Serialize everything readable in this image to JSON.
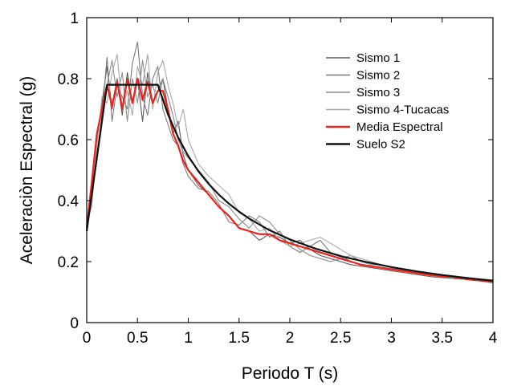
{
  "chart_data": {
    "type": "line",
    "title": "",
    "xlabel": "Periodo T (s)",
    "ylabel": "Aceleraciòn Espectral (g)",
    "xlim": [
      0,
      4
    ],
    "ylim": [
      0,
      1
    ],
    "xticks": [
      0,
      0.5,
      1,
      1.5,
      2,
      2.5,
      3,
      3.5,
      4
    ],
    "xtick_labels": [
      "0",
      "0.5",
      "1",
      "1.5",
      "2",
      "2.5",
      "3",
      "3.5",
      "4"
    ],
    "yticks": [
      0,
      0.2,
      0.4,
      0.6,
      0.8,
      1
    ],
    "ytick_labels": [
      "0",
      "0.2",
      "0.4",
      "0.6",
      "0.8",
      "1"
    ],
    "grid": false,
    "legend_position": "top-right",
    "series": [
      {
        "name": "Sismo 1",
        "color": "#5a5a5a",
        "x": [
          0,
          0.05,
          0.1,
          0.15,
          0.2,
          0.25,
          0.3,
          0.35,
          0.4,
          0.45,
          0.5,
          0.55,
          0.6,
          0.65,
          0.7,
          0.75,
          0.8,
          0.85,
          0.9,
          0.95,
          1.0,
          1.1,
          1.2,
          1.3,
          1.4,
          1.5,
          1.6,
          1.7,
          1.8,
          1.9,
          2.0,
          2.1,
          2.2,
          2.3,
          2.4,
          2.5,
          2.6,
          2.7,
          2.8,
          2.9,
          3.0,
          3.2,
          3.4,
          3.6,
          3.8,
          4.0
        ],
        "y": [
          0.31,
          0.45,
          0.6,
          0.72,
          0.84,
          0.7,
          0.8,
          0.68,
          0.82,
          0.72,
          0.8,
          0.66,
          0.82,
          0.72,
          0.76,
          0.8,
          0.7,
          0.62,
          0.66,
          0.55,
          0.5,
          0.45,
          0.42,
          0.38,
          0.35,
          0.31,
          0.3,
          0.27,
          0.29,
          0.28,
          0.26,
          0.27,
          0.24,
          0.22,
          0.21,
          0.2,
          0.19,
          0.185,
          0.18,
          0.175,
          0.17,
          0.16,
          0.15,
          0.145,
          0.14,
          0.135
        ]
      },
      {
        "name": "Sismo 2",
        "color": "#7a7a7a",
        "x": [
          0,
          0.05,
          0.1,
          0.15,
          0.2,
          0.25,
          0.3,
          0.35,
          0.4,
          0.45,
          0.5,
          0.55,
          0.6,
          0.65,
          0.7,
          0.75,
          0.8,
          0.85,
          0.9,
          0.95,
          1.0,
          1.1,
          1.2,
          1.3,
          1.4,
          1.5,
          1.6,
          1.7,
          1.8,
          1.9,
          2.0,
          2.1,
          2.2,
          2.3,
          2.4,
          2.5,
          2.6,
          2.7,
          2.8,
          2.9,
          3.0,
          3.2,
          3.4,
          3.6,
          3.8,
          4.0
        ],
        "y": [
          0.32,
          0.4,
          0.55,
          0.68,
          0.87,
          0.66,
          0.78,
          0.74,
          0.7,
          0.85,
          0.92,
          0.74,
          0.68,
          0.8,
          0.84,
          0.7,
          0.65,
          0.6,
          0.58,
          0.52,
          0.48,
          0.44,
          0.43,
          0.39,
          0.33,
          0.32,
          0.35,
          0.33,
          0.28,
          0.3,
          0.25,
          0.23,
          0.25,
          0.27,
          0.23,
          0.22,
          0.2,
          0.19,
          0.185,
          0.18,
          0.175,
          0.165,
          0.155,
          0.145,
          0.14,
          0.13
        ]
      },
      {
        "name": "Sismo 3",
        "color": "#8c8c8c",
        "x": [
          0,
          0.05,
          0.1,
          0.15,
          0.2,
          0.25,
          0.3,
          0.35,
          0.4,
          0.45,
          0.5,
          0.55,
          0.6,
          0.65,
          0.7,
          0.75,
          0.8,
          0.85,
          0.9,
          0.95,
          1.0,
          1.1,
          1.2,
          1.3,
          1.4,
          1.5,
          1.6,
          1.7,
          1.8,
          1.9,
          2.0,
          2.1,
          2.2,
          2.3,
          2.4,
          2.5,
          2.6,
          2.7,
          2.8,
          2.9,
          3.0,
          3.2,
          3.4,
          3.6,
          3.8,
          4.0
        ],
        "y": [
          0.3,
          0.42,
          0.62,
          0.7,
          0.78,
          0.86,
          0.74,
          0.82,
          0.66,
          0.8,
          0.72,
          0.86,
          0.74,
          0.78,
          0.72,
          0.8,
          0.74,
          0.68,
          0.6,
          0.56,
          0.54,
          0.5,
          0.46,
          0.4,
          0.38,
          0.34,
          0.31,
          0.35,
          0.33,
          0.29,
          0.27,
          0.24,
          0.22,
          0.21,
          0.2,
          0.21,
          0.22,
          0.2,
          0.19,
          0.19,
          0.18,
          0.17,
          0.155,
          0.15,
          0.14,
          0.135
        ]
      },
      {
        "name": "Sismo 4-Tucacas",
        "color": "#a8a8a8",
        "x": [
          0,
          0.05,
          0.1,
          0.15,
          0.2,
          0.25,
          0.3,
          0.35,
          0.4,
          0.45,
          0.5,
          0.55,
          0.6,
          0.65,
          0.7,
          0.75,
          0.8,
          0.85,
          0.9,
          0.95,
          1.0,
          1.1,
          1.2,
          1.3,
          1.4,
          1.5,
          1.6,
          1.7,
          1.8,
          1.9,
          2.0,
          2.1,
          2.2,
          2.3,
          2.4,
          2.5,
          2.6,
          2.7,
          2.8,
          2.9,
          3.0,
          3.2,
          3.4,
          3.6,
          3.8,
          4.0
        ],
        "y": [
          0.33,
          0.38,
          0.58,
          0.74,
          0.72,
          0.82,
          0.88,
          0.7,
          0.76,
          0.68,
          0.84,
          0.78,
          0.88,
          0.7,
          0.82,
          0.86,
          0.78,
          0.72,
          0.64,
          0.7,
          0.6,
          0.52,
          0.48,
          0.45,
          0.42,
          0.36,
          0.34,
          0.3,
          0.31,
          0.27,
          0.25,
          0.26,
          0.27,
          0.28,
          0.26,
          0.24,
          0.22,
          0.21,
          0.2,
          0.19,
          0.18,
          0.165,
          0.155,
          0.15,
          0.145,
          0.14
        ]
      },
      {
        "name": "Media Espectral",
        "color": "#e8231c",
        "x": [
          0,
          0.05,
          0.1,
          0.15,
          0.2,
          0.25,
          0.3,
          0.35,
          0.4,
          0.45,
          0.5,
          0.55,
          0.6,
          0.65,
          0.7,
          0.75,
          0.8,
          0.85,
          0.9,
          0.95,
          1.0,
          1.1,
          1.2,
          1.3,
          1.4,
          1.5,
          1.6,
          1.7,
          1.8,
          1.9,
          2.0,
          2.1,
          2.2,
          2.3,
          2.4,
          2.5,
          2.6,
          2.7,
          2.8,
          2.9,
          3.0,
          3.2,
          3.4,
          3.6,
          3.8,
          4.0
        ],
        "y": [
          0.31,
          0.46,
          0.62,
          0.7,
          0.78,
          0.71,
          0.79,
          0.7,
          0.8,
          0.72,
          0.8,
          0.73,
          0.79,
          0.72,
          0.76,
          0.76,
          0.7,
          0.62,
          0.58,
          0.53,
          0.5,
          0.46,
          0.42,
          0.38,
          0.35,
          0.31,
          0.3,
          0.29,
          0.29,
          0.27,
          0.26,
          0.25,
          0.24,
          0.23,
          0.22,
          0.21,
          0.2,
          0.19,
          0.185,
          0.18,
          0.175,
          0.165,
          0.155,
          0.15,
          0.14,
          0.135
        ]
      },
      {
        "name": "Suelo S2",
        "color": "#111111",
        "x": [
          0,
          0.2,
          0.7,
          0.8,
          0.9,
          1.0,
          1.1,
          1.2,
          1.3,
          1.4,
          1.5,
          1.6,
          1.8,
          2.0,
          2.25,
          2.5,
          2.75,
          3.0,
          3.25,
          3.5,
          3.75,
          4.0
        ],
        "y": [
          0.3,
          0.78,
          0.78,
          0.683,
          0.607,
          0.546,
          0.496,
          0.455,
          0.42,
          0.39,
          0.364,
          0.341,
          0.303,
          0.273,
          0.243,
          0.218,
          0.199,
          0.182,
          0.168,
          0.156,
          0.146,
          0.137
        ]
      }
    ]
  }
}
